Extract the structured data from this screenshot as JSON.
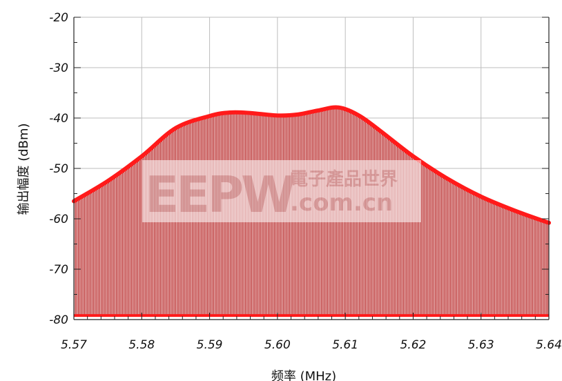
{
  "chart_data": {
    "type": "area",
    "xlabel": "频率 (MHz)",
    "ylabel": "输出幅度 (dBm)",
    "xlim": [
      5.57,
      5.64
    ],
    "ylim": [
      -80,
      -20
    ],
    "x_ticks": [
      "5.57",
      "5.58",
      "5.59",
      "5.60",
      "5.61",
      "5.62",
      "5.63",
      "5.64"
    ],
    "y_ticks": [
      "-20",
      "-30",
      "-40",
      "-50",
      "-60",
      "-70",
      "-80"
    ],
    "grid": true,
    "fill_baseline": -79.2,
    "series": [
      {
        "color": "#ff1a1a",
        "fill_color": "#b31a1a",
        "x": [
          5.57,
          5.575,
          5.58,
          5.585,
          5.59,
          5.593,
          5.596,
          5.6,
          5.603,
          5.606,
          5.609,
          5.612,
          5.615,
          5.62,
          5.625,
          5.63,
          5.635,
          5.64
        ],
        "y": [
          -56.5,
          -52.5,
          -47.6,
          -42.0,
          -39.6,
          -38.9,
          -39.0,
          -39.5,
          -39.3,
          -38.5,
          -37.9,
          -39.5,
          -42.4,
          -47.6,
          -52.0,
          -55.6,
          -58.4,
          -60.8
        ]
      }
    ]
  },
  "watermark": {
    "logo": "EEPW",
    "cn_text": "電子產品世界",
    "url": ".com.cn"
  }
}
